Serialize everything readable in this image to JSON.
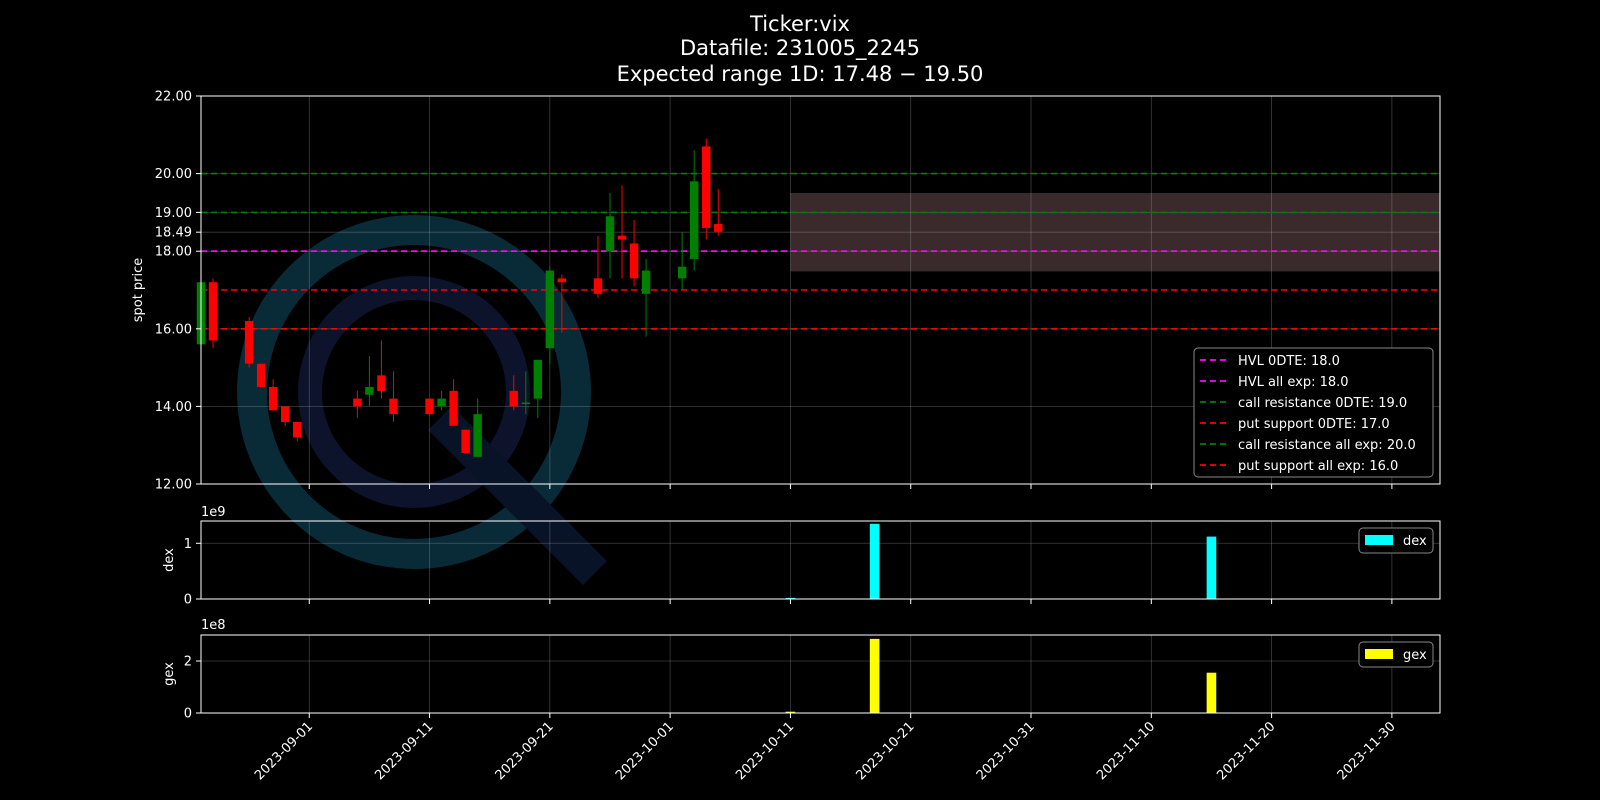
{
  "title_lines": [
    "Ticker:vix",
    "Datafile: 231005_2245",
    "Expected range 1D: 17.48 − 19.50"
  ],
  "colors": {
    "background": "#000000",
    "up": "#008000",
    "down": "#ff0000",
    "grid": "#b0b0b0",
    "range_band": "#3a2a2c",
    "hvl": "#ff00ff",
    "call_resistance": "#008000",
    "put_support": "#ff0000",
    "dex": "#00ffff",
    "gex": "#ffff00",
    "watermark_ring": "#0b3a4a",
    "watermark_ring_inner": "#101a3a"
  },
  "chart_data": [
    {
      "type": "candlestick",
      "ylabel": "spot price",
      "ylim": [
        12,
        22
      ],
      "xlim": [
        "2023-08-23",
        "2023-12-04"
      ],
      "yticks": [
        12,
        14,
        16,
        18,
        18.49,
        19,
        20,
        22
      ],
      "ytick_labels": [
        "12.00",
        "14.00",
        "16.00",
        "18.00",
        "18.49",
        "19.00",
        "20.00",
        "22.00"
      ],
      "xticks": [
        "2023-09-01",
        "2023-09-11",
        "2023-09-21",
        "2023-10-01",
        "2023-10-11",
        "2023-10-21",
        "2023-10-31",
        "2023-11-10",
        "2023-11-20",
        "2023-11-30"
      ],
      "expected_range": {
        "from": "2023-10-11",
        "to": "2023-12-04",
        "low": 17.48,
        "high": 19.5
      },
      "levels": [
        {
          "label": "HVL 0DTE: 18.0",
          "value": 18.0,
          "color": "#ff00ff"
        },
        {
          "label": "HVL all exp: 18.0",
          "value": 18.0,
          "color": "#ff00ff"
        },
        {
          "label": "call resistance 0DTE: 19.0",
          "value": 19.0,
          "color": "#008000"
        },
        {
          "label": "put support 0DTE: 17.0",
          "value": 17.0,
          "color": "#ff0000"
        },
        {
          "label": "call resistance all exp: 20.0",
          "value": 20.0,
          "color": "#008000"
        },
        {
          "label": "put support all exp: 16.0",
          "value": 16.0,
          "color": "#ff0000"
        }
      ],
      "candles": [
        {
          "date": "2023-08-23",
          "open": 15.6,
          "high": 17.3,
          "low": 15.4,
          "close": 17.2
        },
        {
          "date": "2023-08-24",
          "open": 17.2,
          "high": 17.3,
          "low": 15.5,
          "close": 15.7
        },
        {
          "date": "2023-08-27",
          "open": 16.2,
          "high": 16.3,
          "low": 15.0,
          "close": 15.1
        },
        {
          "date": "2023-08-28",
          "open": 15.1,
          "high": 15.1,
          "low": 14.5,
          "close": 14.5
        },
        {
          "date": "2023-08-29",
          "open": 14.5,
          "high": 14.7,
          "low": 13.9,
          "close": 13.9
        },
        {
          "date": "2023-08-30",
          "open": 14.0,
          "high": 14.0,
          "low": 13.5,
          "close": 13.6
        },
        {
          "date": "2023-08-31",
          "open": 13.6,
          "high": 13.6,
          "low": 13.1,
          "close": 13.2
        },
        {
          "date": "2023-09-05",
          "open": 14.2,
          "high": 14.4,
          "low": 13.7,
          "close": 14.0
        },
        {
          "date": "2023-09-06",
          "open": 14.3,
          "high": 15.3,
          "low": 14.0,
          "close": 14.5
        },
        {
          "date": "2023-09-07",
          "open": 14.8,
          "high": 15.7,
          "low": 14.2,
          "close": 14.4
        },
        {
          "date": "2023-09-08",
          "open": 14.2,
          "high": 14.9,
          "low": 13.6,
          "close": 13.8
        },
        {
          "date": "2023-09-11",
          "open": 14.2,
          "high": 14.2,
          "low": 13.8,
          "close": 13.8
        },
        {
          "date": "2023-09-12",
          "open": 14.0,
          "high": 14.4,
          "low": 13.9,
          "close": 14.2
        },
        {
          "date": "2023-09-13",
          "open": 14.4,
          "high": 14.7,
          "low": 13.5,
          "close": 13.5
        },
        {
          "date": "2023-09-14",
          "open": 13.4,
          "high": 13.4,
          "low": 12.8,
          "close": 12.8
        },
        {
          "date": "2023-09-15",
          "open": 12.7,
          "high": 14.2,
          "low": 12.7,
          "close": 13.8
        },
        {
          "date": "2023-09-18",
          "open": 14.4,
          "high": 14.8,
          "low": 13.9,
          "close": 14.0
        },
        {
          "date": "2023-09-19",
          "open": 14.1,
          "high": 14.9,
          "low": 13.8,
          "close": 14.1
        },
        {
          "date": "2023-09-20",
          "open": 14.2,
          "high": 15.2,
          "low": 13.7,
          "close": 15.2
        },
        {
          "date": "2023-09-21",
          "open": 15.5,
          "high": 17.6,
          "low": 15.1,
          "close": 17.5
        },
        {
          "date": "2023-09-22",
          "open": 17.3,
          "high": 17.4,
          "low": 15.9,
          "close": 17.2
        },
        {
          "date": "2023-09-25",
          "open": 17.3,
          "high": 18.4,
          "low": 16.8,
          "close": 16.9
        },
        {
          "date": "2023-09-26",
          "open": 18.0,
          "high": 19.5,
          "low": 17.3,
          "close": 18.9
        },
        {
          "date": "2023-09-27",
          "open": 18.4,
          "high": 19.7,
          "low": 17.3,
          "close": 18.3
        },
        {
          "date": "2023-09-28",
          "open": 18.2,
          "high": 18.8,
          "low": 17.1,
          "close": 17.3
        },
        {
          "date": "2023-09-29",
          "open": 16.9,
          "high": 17.8,
          "low": 15.8,
          "close": 17.5
        },
        {
          "date": "2023-10-02",
          "open": 17.3,
          "high": 18.5,
          "low": 17.0,
          "close": 17.6
        },
        {
          "date": "2023-10-03",
          "open": 17.8,
          "high": 20.6,
          "low": 17.5,
          "close": 19.8
        },
        {
          "date": "2023-10-04",
          "open": 20.7,
          "high": 20.9,
          "low": 18.3,
          "close": 18.6
        },
        {
          "date": "2023-10-05",
          "open": 18.7,
          "high": 19.6,
          "low": 18.4,
          "close": 18.5
        }
      ]
    },
    {
      "type": "bar",
      "series_name": "dex",
      "ylabel": "dex",
      "scale_label": "1e9",
      "ylim": [
        0,
        1.4
      ],
      "yticks": [
        0,
        1
      ],
      "ytick_labels": [
        "0",
        "1"
      ],
      "bars": [
        {
          "date": "2023-10-11",
          "value": 0.02
        },
        {
          "date": "2023-10-18",
          "value": 1.35
        },
        {
          "date": "2023-11-15",
          "value": 1.12
        }
      ]
    },
    {
      "type": "bar",
      "series_name": "gex",
      "ylabel": "gex",
      "scale_label": "1e8",
      "ylim": [
        0,
        3
      ],
      "yticks": [
        0,
        2
      ],
      "ytick_labels": [
        "0",
        "2"
      ],
      "bars": [
        {
          "date": "2023-10-11",
          "value": 0.05
        },
        {
          "date": "2023-10-18",
          "value": 2.85
        },
        {
          "date": "2023-11-15",
          "value": 1.55
        }
      ]
    }
  ]
}
